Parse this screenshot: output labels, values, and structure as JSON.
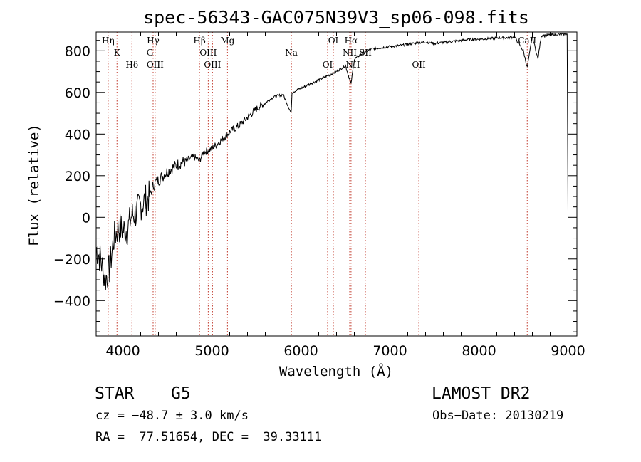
{
  "chart_data": {
    "type": "line",
    "title": "spec-56343-GAC075N39V3_sp06-098.fits",
    "xlabel": "Wavelength (Å)",
    "ylabel": "Flux (relative)",
    "xlim": [
      3700,
      9100
    ],
    "ylim": [
      -570,
      890
    ],
    "x_ticks": [
      4000,
      5000,
      6000,
      7000,
      8000,
      9000
    ],
    "y_ticks": [
      -400,
      -200,
      0,
      200,
      400,
      600,
      800
    ],
    "x_tick_labels": [
      "4000",
      "5000",
      "6000",
      "7000",
      "8000",
      "9000"
    ],
    "y_tick_labels": [
      "−400",
      "−200",
      "0",
      "200",
      "400",
      "600",
      "800"
    ],
    "series": [
      {
        "name": "spectrum",
        "x": [
          3700,
          3750,
          3800,
          3850,
          3900,
          3950,
          4000,
          4050,
          4100,
          4150,
          4200,
          4250,
          4300,
          4350,
          4400,
          4500,
          4600,
          4700,
          4800,
          4860,
          4900,
          5000,
          5100,
          5200,
          5300,
          5400,
          5500,
          5600,
          5700,
          5800,
          5890,
          5900,
          6000,
          6100,
          6200,
          6300,
          6400,
          6500,
          6563,
          6600,
          6700,
          6800,
          6900,
          7000,
          7100,
          7200,
          7300,
          7400,
          7500,
          7600,
          7700,
          7800,
          7900,
          8000,
          8100,
          8200,
          8300,
          8400,
          8498,
          8542,
          8600,
          8662,
          8700,
          8800,
          8900,
          8990,
          9000
        ],
        "y": [
          -150,
          -200,
          -300,
          -250,
          -100,
          -50,
          -60,
          -60,
          10,
          20,
          60,
          80,
          100,
          160,
          180,
          220,
          250,
          270,
          290,
          270,
          310,
          330,
          370,
          410,
          440,
          480,
          520,
          550,
          580,
          590,
          500,
          600,
          620,
          640,
          660,
          680,
          700,
          730,
          640,
          760,
          790,
          810,
          815,
          820,
          825,
          830,
          838,
          842,
          835,
          840,
          845,
          850,
          855,
          855,
          858,
          862,
          862,
          866,
          800,
          720,
          870,
          760,
          872,
          876,
          878,
          880,
          30
        ],
        "color": "#000000"
      }
    ],
    "line_markers": [
      {
        "label": "Hη",
        "x": 3835
      },
      {
        "label": "K",
        "x": 3934
      },
      {
        "label": "Hδ",
        "x": 4102
      },
      {
        "label": "Hγ",
        "x": 4340
      },
      {
        "label": "G",
        "x": 4304
      },
      {
        "label": "OIII",
        "x": 4363
      },
      {
        "label": "Hβ",
        "x": 4861
      },
      {
        "label": "OIII",
        "x": 4959
      },
      {
        "label": "OIII",
        "x": 5007
      },
      {
        "label": "Mg",
        "x": 5175
      },
      {
        "label": "Na",
        "x": 5893
      },
      {
        "label": "OI",
        "x": 6300
      },
      {
        "label": "OI",
        "x": 6364
      },
      {
        "label": "NII",
        "x": 6548
      },
      {
        "label": "NII",
        "x": 6584
      },
      {
        "label": "Hα",
        "x": 6563
      },
      {
        "label": "SII",
        "x": 6724
      },
      {
        "label": "OII",
        "x": 7325
      },
      {
        "label": "CaII",
        "x": 8542
      }
    ],
    "marker_color": "#c0392b",
    "grid": false,
    "legend": "none"
  },
  "info": {
    "object_class": "STAR",
    "subclass": "G5",
    "survey": "LAMOST DR2",
    "cz": "cz = −48.7 ± 3.0 km/s",
    "obs_date": "Obs−Date: 20130219",
    "coords": "RA =  77.51654, DEC =  39.33111"
  }
}
